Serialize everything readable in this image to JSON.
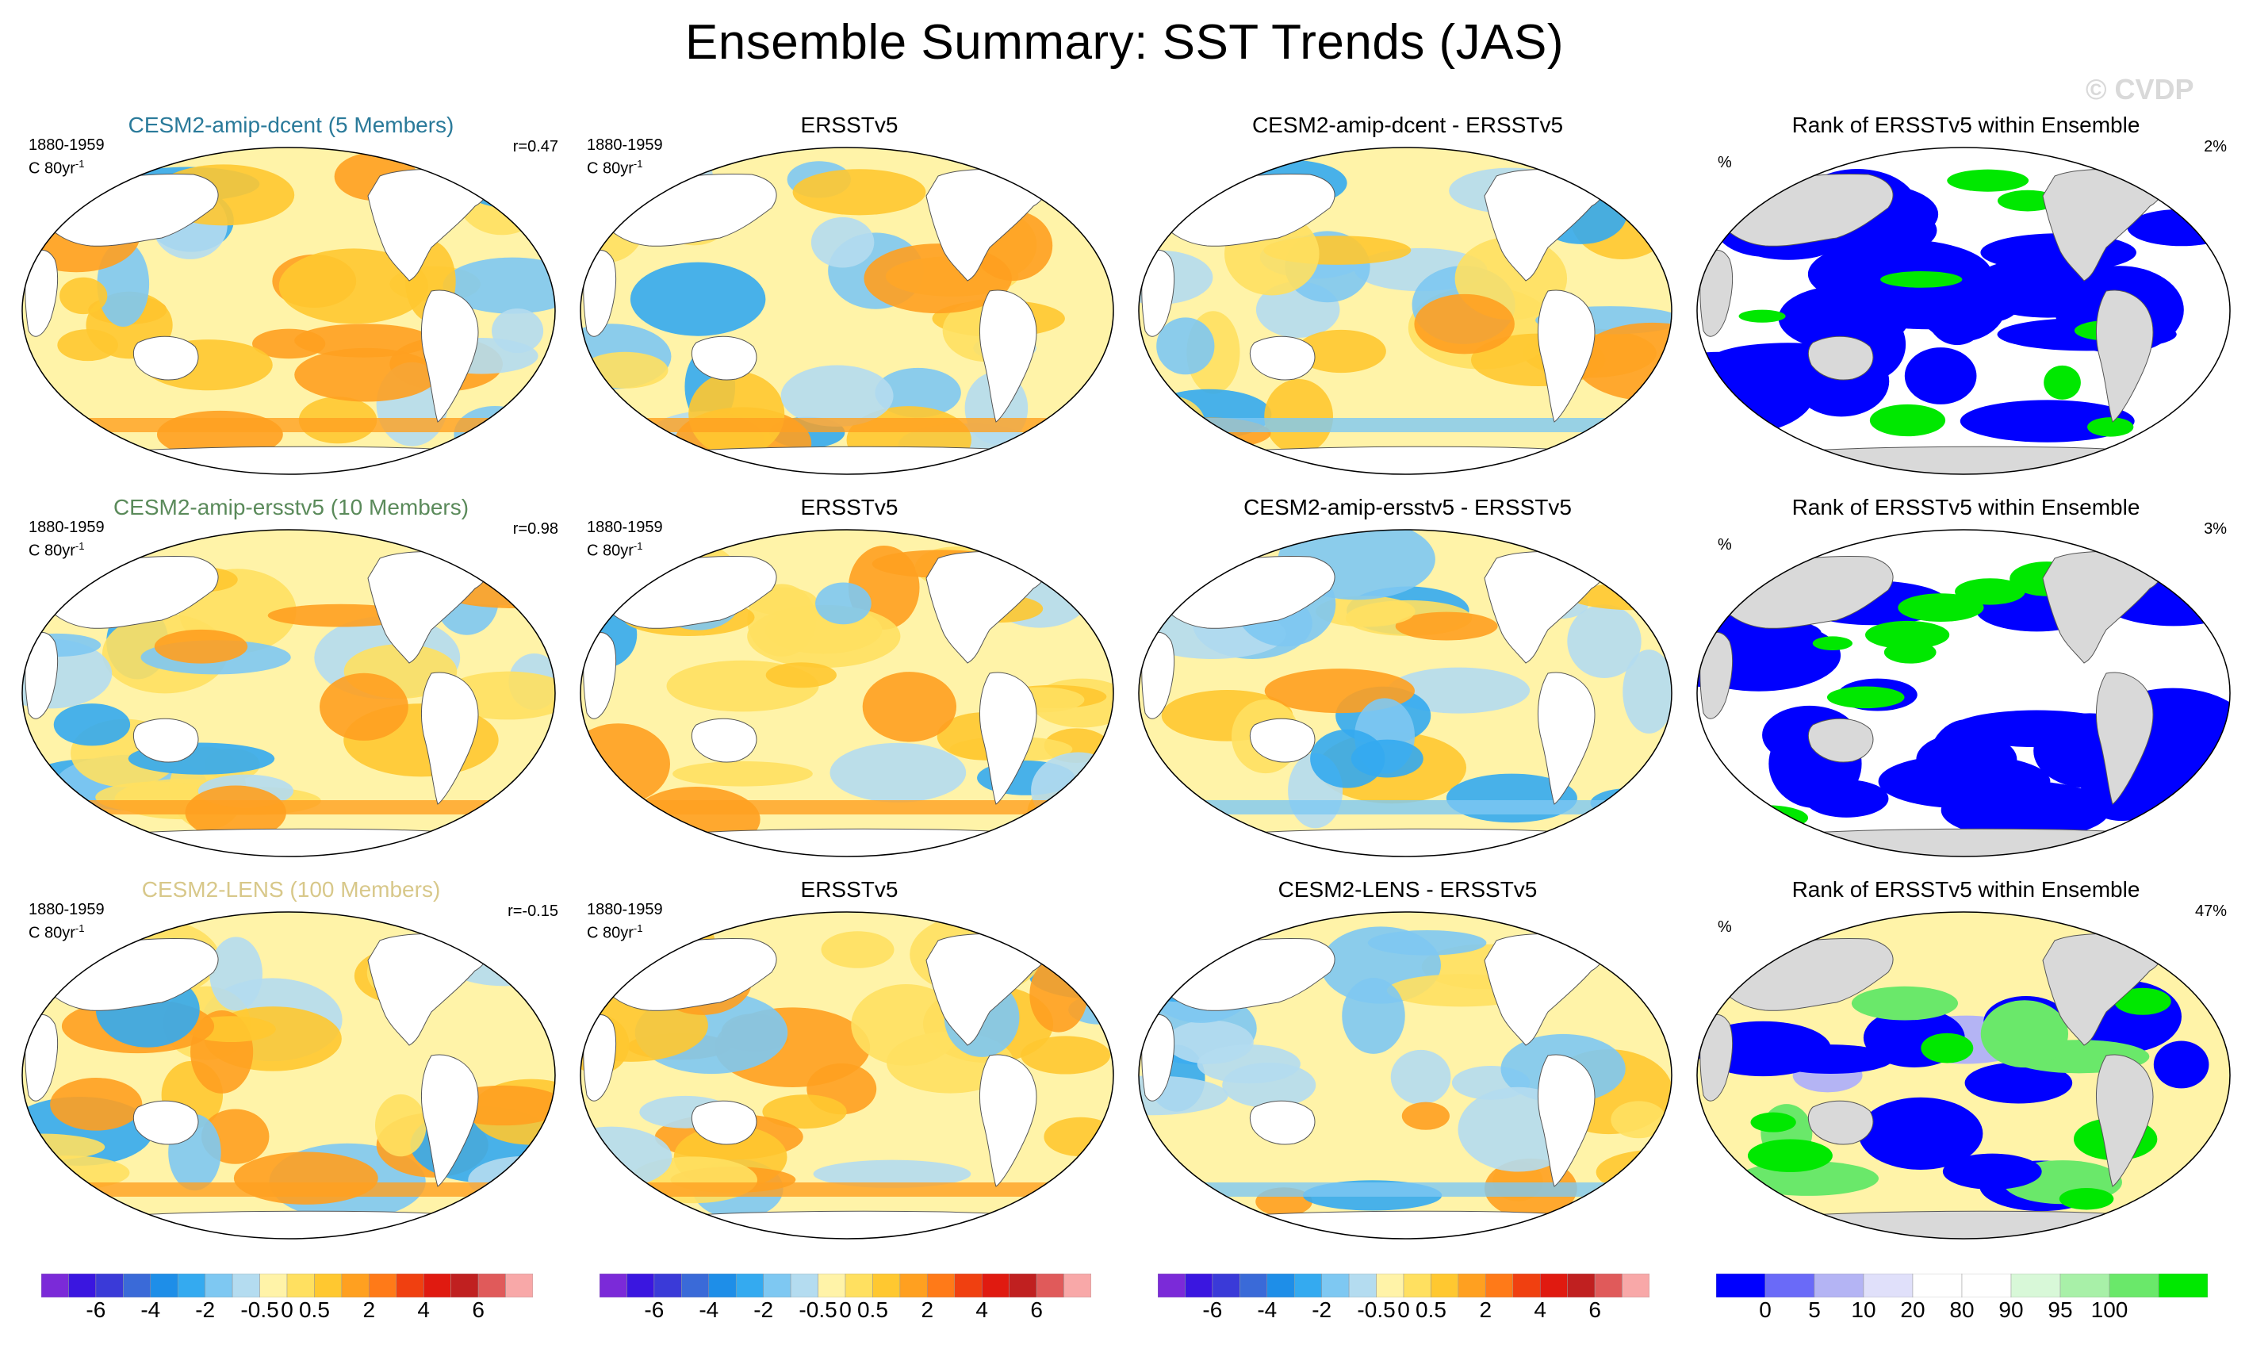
{
  "title": "Ensemble Summary: SST Trends (JAS)",
  "watermark": "© CVDP",
  "rows": [
    {
      "model": {
        "title": "CESM2-amip-dcent (5 Members)",
        "title_color": "#2a7a9a",
        "period": "1880-1959",
        "unit": "C 80yr",
        "unit_sup": "-1",
        "corr": "r=0.47"
      },
      "obs": {
        "title": "ERSSTv5",
        "period": "1880-1959",
        "unit": "C 80yr",
        "unit_sup": "-1"
      },
      "diff": {
        "title": "CESM2-amip-dcent - ERSSTv5"
      },
      "rank": {
        "title": "Rank of ERSSTv5 within Ensemble",
        "unit": "%",
        "pct": "2%"
      }
    },
    {
      "model": {
        "title": "CESM2-amip-ersstv5 (10 Members)",
        "title_color": "#5a8a5a",
        "period": "1880-1959",
        "unit": "C 80yr",
        "unit_sup": "-1",
        "corr": "r=0.98"
      },
      "obs": {
        "title": "ERSSTv5",
        "period": "1880-1959",
        "unit": "C 80yr",
        "unit_sup": "-1"
      },
      "diff": {
        "title": "CESM2-amip-ersstv5 - ERSSTv5"
      },
      "rank": {
        "title": "Rank of ERSSTv5 within Ensemble",
        "unit": "%",
        "pct": "3%"
      }
    },
    {
      "model": {
        "title": "CESM2-LENS (100 Members)",
        "title_color": "#d8c88a",
        "period": "1880-1959",
        "unit": "C 80yr",
        "unit_sup": "-1",
        "corr": "r=-0.15"
      },
      "obs": {
        "title": "ERSSTv5",
        "period": "1880-1959",
        "unit": "C 80yr",
        "unit_sup": "-1"
      },
      "diff": {
        "title": "CESM2-LENS - ERSSTv5"
      },
      "rank": {
        "title": "Rank of ERSSTv5 within Ensemble",
        "unit": "%",
        "pct": "47%"
      }
    }
  ],
  "trend_colorbar": {
    "colors": [
      "#7b2ad8",
      "#3a16e0",
      "#3a3ad8",
      "#3a6ad8",
      "#1e8ee8",
      "#34aaf0",
      "#7ec8f2",
      "#b4dcf0",
      "#fff3a8",
      "#ffe060",
      "#ffc830",
      "#ffa020",
      "#ff7a18",
      "#f04010",
      "#e01a10",
      "#c02020",
      "#e05a5a",
      "#f8a8a8"
    ],
    "labels": [
      "-6",
      "-4",
      "-2",
      "-0.5",
      "0",
      "0.5",
      "2",
      "4",
      "6"
    ]
  },
  "rank_colorbar": {
    "colors": [
      "#0000ff",
      "#6a6af8",
      "#b4b4f4",
      "#e0e0fa",
      "#ffffff",
      "#ffffff",
      "#d8f8d8",
      "#a8f0a8",
      "#6ae86a",
      "#00e800"
    ],
    "labels": [
      "0",
      "5",
      "10",
      "20",
      "80",
      "90",
      "95",
      "100"
    ]
  }
}
